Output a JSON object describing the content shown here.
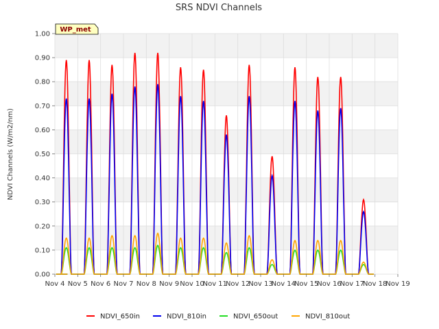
{
  "chart_data": {
    "type": "line",
    "title": "SRS NDVI Channels",
    "ylabel": "NDVI Channels (W/m2/nm)",
    "xlabel": "",
    "badge": "WP_met",
    "ylim": [
      0,
      1.0
    ],
    "xlim": [
      4,
      19
    ],
    "y_ticks": [
      "0.00",
      "0.10",
      "0.20",
      "0.30",
      "0.40",
      "0.50",
      "0.60",
      "0.70",
      "0.80",
      "0.90",
      "1.00"
    ],
    "x_ticks": [
      "Nov 4",
      "Nov 5",
      "Nov 6",
      "Nov 7",
      "Nov 8",
      "Nov 9",
      "Nov 10",
      "Nov 11",
      "Nov 12",
      "Nov 13",
      "Nov 14",
      "Nov 15",
      "Nov 16",
      "Nov 17",
      "Nov 18",
      "Nov 19"
    ],
    "grid": true,
    "legend_position": "bottom",
    "days": [
      5,
      6,
      7,
      8,
      9,
      10,
      11,
      12,
      13,
      14,
      15,
      16,
      17,
      18
    ],
    "series": [
      {
        "name": "NDVI_650in",
        "color": "#ff0000",
        "peaks": [
          0.89,
          0.89,
          0.87,
          0.92,
          0.92,
          0.86,
          0.85,
          0.66,
          0.87,
          0.49,
          0.86,
          0.82,
          0.82,
          0.31
        ]
      },
      {
        "name": "NDVI_810in",
        "color": "#0000ee",
        "peaks": [
          0.73,
          0.73,
          0.75,
          0.78,
          0.79,
          0.74,
          0.72,
          0.58,
          0.74,
          0.41,
          0.72,
          0.68,
          0.69,
          0.26
        ]
      },
      {
        "name": "NDVI_650out",
        "color": "#22dd22",
        "peaks": [
          0.11,
          0.11,
          0.11,
          0.11,
          0.12,
          0.11,
          0.11,
          0.09,
          0.11,
          0.04,
          0.1,
          0.1,
          0.1,
          0.04
        ]
      },
      {
        "name": "NDVI_810out",
        "color": "#ffa500",
        "peaks": [
          0.15,
          0.15,
          0.16,
          0.16,
          0.17,
          0.15,
          0.15,
          0.13,
          0.16,
          0.06,
          0.14,
          0.14,
          0.14,
          0.05
        ]
      }
    ]
  }
}
